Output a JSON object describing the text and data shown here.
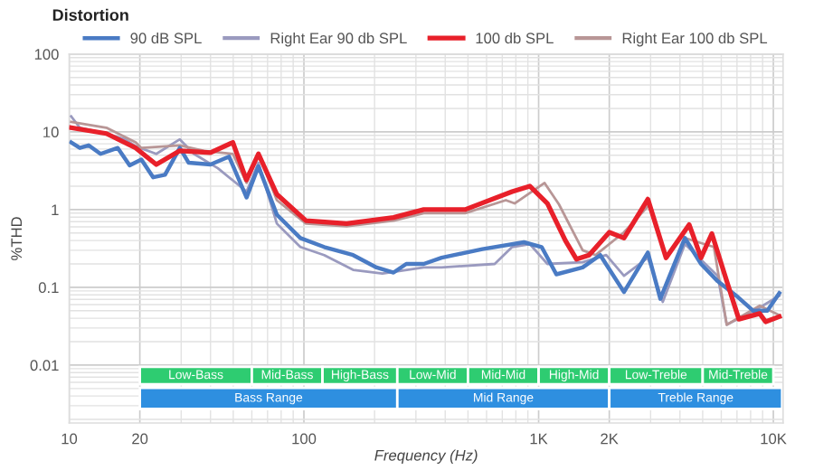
{
  "chart_data": {
    "type": "line",
    "title": "Distortion",
    "xlabel": "Frequency (Hz)",
    "ylabel": "%THD",
    "log": "xy",
    "xlim": [
      10,
      11000
    ],
    "ylim": [
      0.0018,
      100
    ],
    "xticks": [
      10,
      20,
      100,
      {
        "value": 1000,
        "label": "1K"
      },
      {
        "value": 2000,
        "label": "2K"
      },
      {
        "value": 10000,
        "label": "10K"
      }
    ],
    "yticks": [
      0.01,
      0.1,
      1,
      10,
      100
    ],
    "grid": true,
    "legend": "top",
    "series": [
      {
        "name": "90 dB SPL",
        "color": "#4a7bc4",
        "x": [
          10.2,
          11.1,
          12.1,
          13.6,
          16.1,
          18.1,
          20.3,
          22.8,
          25.6,
          29.6,
          32.3,
          40,
          48,
          57,
          64,
          76.7,
          96.6,
          122,
          162,
          204,
          241,
          273,
          324,
          386,
          576,
          866,
          1030,
          1190,
          1540,
          1830,
          2310,
          2920,
          3300,
          4200,
          4920,
          5790,
          6950,
          8210,
          9430,
          10600
        ],
        "values": [
          7.3,
          6.2,
          6.7,
          5.2,
          6.2,
          3.7,
          4.4,
          2.6,
          2.8,
          6.2,
          4.0,
          3.8,
          4.8,
          1.43,
          3.6,
          0.86,
          0.43,
          0.33,
          0.26,
          0.18,
          0.155,
          0.2,
          0.2,
          0.24,
          0.31,
          0.38,
          0.33,
          0.147,
          0.18,
          0.26,
          0.087,
          0.28,
          0.071,
          0.43,
          0.2,
          0.12,
          0.078,
          0.05,
          0.05,
          0.084
        ]
      },
      {
        "name": "Right Ear 90 db SPL",
        "color": "#9a9abf",
        "x": [
          10.2,
          11.1,
          14.4,
          17.3,
          19.2,
          23.5,
          29.6,
          34,
          43,
          57,
          64,
          76.7,
          96.6,
          122,
          162,
          216,
          324,
          386,
          650,
          771,
          917,
          1090,
          1540,
          1940,
          2310,
          2920,
          3380,
          4200,
          5790,
          6330,
          8750,
          10600
        ],
        "values": [
          15.8,
          11.3,
          9.5,
          8.0,
          6.5,
          5.2,
          8.0,
          5.2,
          3.4,
          1.7,
          4.0,
          0.66,
          0.33,
          0.26,
          0.168,
          0.15,
          0.18,
          0.18,
          0.2,
          0.33,
          0.36,
          0.2,
          0.21,
          0.26,
          0.141,
          0.24,
          0.065,
          0.36,
          0.14,
          0.033,
          0.055,
          0.078
        ]
      },
      {
        "name": "100 db SPL",
        "color": "#e8202a",
        "x": [
          10.2,
          14.4,
          19.2,
          23.5,
          29.6,
          40,
          49.8,
          56.9,
          64,
          76.7,
          102,
          152,
          241,
          324,
          486,
          771,
          917,
          1090,
          1300,
          1450,
          1640,
          2000,
          2310,
          2920,
          3490,
          4380,
          4920,
          5470,
          6330,
          7130,
          8750,
          9270,
          10600
        ],
        "values": [
          11.3,
          9.5,
          6.2,
          3.8,
          5.7,
          5.4,
          7.3,
          2.4,
          5.2,
          1.57,
          0.72,
          0.66,
          0.79,
          1.0,
          1.0,
          1.7,
          2.0,
          1.2,
          0.4,
          0.23,
          0.26,
          0.51,
          0.43,
          1.36,
          0.24,
          0.64,
          0.24,
          0.49,
          0.12,
          0.039,
          0.046,
          0.036,
          0.042
        ]
      },
      {
        "name": "Right Ear 100 db SPL",
        "color": "#b89696",
        "x": [
          10.2,
          14.4,
          19.2,
          20.3,
          29.6,
          37.5,
          49.8,
          57,
          64,
          76.7,
          102,
          152,
          241,
          324,
          486,
          725,
          790,
          1060,
          1220,
          1540,
          1750,
          2310,
          2920,
          3490,
          4200,
          5580,
          6330,
          8750,
          10600
        ],
        "values": [
          13.4,
          11.3,
          7.3,
          6.2,
          6.7,
          5.7,
          5.2,
          2.2,
          5.2,
          1.32,
          0.66,
          0.61,
          0.72,
          0.9,
          0.9,
          1.32,
          1.2,
          2.2,
          1.17,
          0.3,
          0.26,
          0.51,
          1.1,
          null,
          0.43,
          0.33,
          0.033,
          0.058,
          0.044
        ]
      }
    ],
    "bands": [
      {
        "axis": "x",
        "from": 20,
        "to": 60,
        "label": "Low-Bass",
        "color": "#2ecc71"
      },
      {
        "axis": "x",
        "from": 60,
        "to": 120,
        "label": "Mid-Bass",
        "color": "#2ecc71"
      },
      {
        "axis": "x",
        "from": 120,
        "to": 250,
        "label": "High-Bass",
        "color": "#2ecc71"
      },
      {
        "axis": "x",
        "from": 250,
        "to": 500,
        "label": "Low-Mid",
        "color": "#2ecc71"
      },
      {
        "axis": "x",
        "from": 500,
        "to": 1000,
        "label": "Mid-Mid",
        "color": "#2ecc71"
      },
      {
        "axis": "x",
        "from": 1000,
        "to": 2000,
        "label": "High-Mid",
        "color": "#2ecc71"
      },
      {
        "axis": "x",
        "from": 2000,
        "to": 5000,
        "label": "Low-Treble",
        "color": "#2ecc71"
      },
      {
        "axis": "x",
        "from": 5000,
        "to": 10000,
        "label": "Mid-Treble",
        "color": "#2ecc71"
      },
      {
        "axis": "x",
        "from": 20,
        "to": 250,
        "label": "Bass Range",
        "color": "#2e8fe0"
      },
      {
        "axis": "x",
        "from": 250,
        "to": 2000,
        "label": "Mid Range",
        "color": "#2e8fe0"
      },
      {
        "axis": "x",
        "from": 2000,
        "to": 10900,
        "label": "Treble Range",
        "color": "#2e8fe0"
      }
    ]
  }
}
